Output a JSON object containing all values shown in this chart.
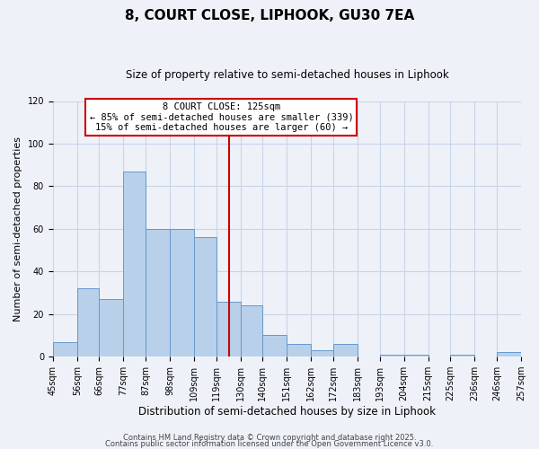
{
  "title": "8, COURT CLOSE, LIPHOOK, GU30 7EA",
  "subtitle": "Size of property relative to semi-detached houses in Liphook",
  "xlabel": "Distribution of semi-detached houses by size in Liphook",
  "ylabel": "Number of semi-detached properties",
  "bin_labels": [
    "45sqm",
    "56sqm",
    "66sqm",
    "77sqm",
    "87sqm",
    "98sqm",
    "109sqm",
    "119sqm",
    "130sqm",
    "140sqm",
    "151sqm",
    "162sqm",
    "172sqm",
    "183sqm",
    "193sqm",
    "204sqm",
    "215sqm",
    "225sqm",
    "236sqm",
    "246sqm",
    "257sqm"
  ],
  "bar_values": [
    7,
    32,
    27,
    87,
    60,
    60,
    56,
    26,
    24,
    10,
    6,
    3,
    6,
    0,
    1,
    1,
    0,
    1,
    0,
    2
  ],
  "bin_edges": [
    45,
    56,
    66,
    77,
    87,
    98,
    109,
    119,
    130,
    140,
    151,
    162,
    172,
    183,
    193,
    204,
    215,
    225,
    236,
    246,
    257
  ],
  "bar_color": "#b8d0ea",
  "bar_edge_color": "#6699cc",
  "vline_x": 125,
  "vline_color": "#cc0000",
  "ylim": [
    0,
    120
  ],
  "yticks": [
    0,
    20,
    40,
    60,
    80,
    100,
    120
  ],
  "grid_color": "#c8d4e8",
  "background_color": "#eef2f8",
  "annotation_title": "8 COURT CLOSE: 125sqm",
  "annotation_line1": "← 85% of semi-detached houses are smaller (339)",
  "annotation_line2": "15% of semi-detached houses are larger (60) →",
  "annotation_box_color": "#ffffff",
  "annotation_box_edge": "#cc0000",
  "footer1": "Contains HM Land Registry data © Crown copyright and database right 2025.",
  "footer2": "Contains public sector information licensed under the Open Government Licence v3.0.",
  "title_fontsize": 11,
  "subtitle_fontsize": 8.5,
  "xlabel_fontsize": 8.5,
  "ylabel_fontsize": 8,
  "tick_fontsize": 7,
  "annotation_fontsize": 7.5,
  "footer_fontsize": 6
}
